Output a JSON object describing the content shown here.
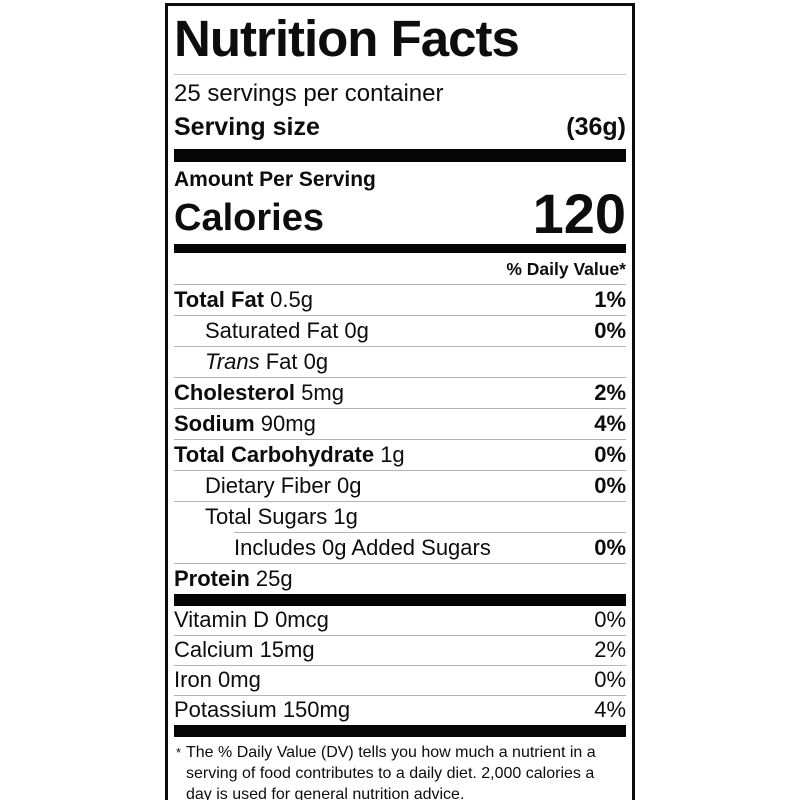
{
  "label": {
    "title": "Nutrition Facts",
    "servings_per_container": "25 servings per container",
    "serving_size": {
      "label": "Serving size",
      "value": "(36g)"
    },
    "amount_per_serving": "Amount Per Serving",
    "calories": {
      "label": "Calories",
      "value": "120"
    },
    "daily_value_header": "% Daily Value*",
    "nutrients": [
      {
        "segments": [
          {
            "text": "Total Fat",
            "style": "bold"
          },
          {
            "text": "0.5g",
            "style": "regular"
          }
        ],
        "dv": "1%",
        "dv_bold": true,
        "indent": 0,
        "partial_divider": false
      },
      {
        "segments": [
          {
            "text": "Saturated Fat 0g",
            "style": "regular"
          }
        ],
        "dv": "0%",
        "dv_bold": true,
        "indent": 1,
        "partial_divider": false
      },
      {
        "segments": [
          {
            "text": "Trans",
            "style": "italic"
          },
          {
            "text": "Fat 0g",
            "style": "regular"
          }
        ],
        "dv": "",
        "dv_bold": true,
        "indent": 1,
        "partial_divider": false
      },
      {
        "segments": [
          {
            "text": "Cholesterol",
            "style": "bold"
          },
          {
            "text": "5mg",
            "style": "regular"
          }
        ],
        "dv": "2%",
        "dv_bold": true,
        "indent": 0,
        "partial_divider": false
      },
      {
        "segments": [
          {
            "text": "Sodium",
            "style": "bold"
          },
          {
            "text": "90mg",
            "style": "regular"
          }
        ],
        "dv": "4%",
        "dv_bold": true,
        "indent": 0,
        "partial_divider": false
      },
      {
        "segments": [
          {
            "text": "Total Carbohydrate",
            "style": "bold"
          },
          {
            "text": "1g",
            "style": "regular"
          }
        ],
        "dv": "0%",
        "dv_bold": true,
        "indent": 0,
        "partial_divider": false
      },
      {
        "segments": [
          {
            "text": "Dietary Fiber 0g",
            "style": "regular"
          }
        ],
        "dv": "0%",
        "dv_bold": true,
        "indent": 1,
        "partial_divider": false
      },
      {
        "segments": [
          {
            "text": "Total Sugars 1g",
            "style": "regular"
          }
        ],
        "dv": "",
        "dv_bold": true,
        "indent": 1,
        "partial_divider": false
      },
      {
        "segments": [
          {
            "text": "Includes 0g Added Sugars",
            "style": "regular"
          }
        ],
        "dv": "0%",
        "dv_bold": true,
        "indent": 2,
        "partial_divider": true
      },
      {
        "segments": [
          {
            "text": "Protein",
            "style": "bold"
          },
          {
            "text": "25g",
            "style": "regular"
          }
        ],
        "dv": "",
        "dv_bold": true,
        "indent": 0,
        "partial_divider": false
      }
    ],
    "micronutrients": [
      {
        "segments": [
          {
            "text": "Vitamin D 0mcg",
            "style": "regular"
          }
        ],
        "dv": "0%",
        "dv_bold": false,
        "indent": 0,
        "partial_divider": false
      },
      {
        "segments": [
          {
            "text": "Calcium 15mg",
            "style": "regular"
          }
        ],
        "dv": "2%",
        "dv_bold": false,
        "indent": 0,
        "partial_divider": false
      },
      {
        "segments": [
          {
            "text": "Iron 0mg",
            "style": "regular"
          }
        ],
        "dv": "0%",
        "dv_bold": false,
        "indent": 0,
        "partial_divider": false
      },
      {
        "segments": [
          {
            "text": "Potassium 150mg",
            "style": "regular"
          }
        ],
        "dv": "4%",
        "dv_bold": false,
        "indent": 0,
        "partial_divider": false
      }
    ],
    "footnote": {
      "marker": "*",
      "text": "The % Daily Value (DV) tells you how much a nutrient in a serving of food contributes to a daily diet. 2,000 calories a day is used for general nutrition advice."
    }
  },
  "colors": {
    "text": "#0d0d0d",
    "border": "#0d0d0d",
    "bar": "#050505",
    "hairline": "#b5b5b5",
    "title_divider": "#c9c9c9",
    "background": "#ffffff"
  }
}
